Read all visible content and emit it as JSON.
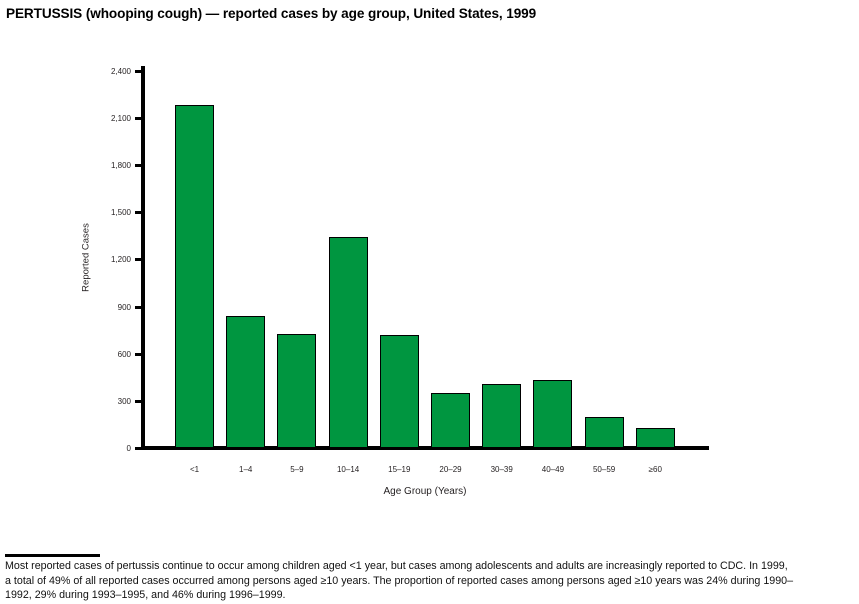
{
  "title": "PERTUSSIS (whooping cough) — reported cases by age group, United States, 1999",
  "chart_data": {
    "type": "bar",
    "title": "PERTUSSIS (whooping cough) — reported cases by age group, United States, 1999",
    "categories": [
      "<1",
      "1–4",
      "5–9",
      "10–14",
      "15–19",
      "20–29",
      "30–39",
      "40–49",
      "50–59",
      "≥60"
    ],
    "values": [
      2185,
      840,
      725,
      1345,
      720,
      350,
      410,
      435,
      195,
      125
    ],
    "xlabel": "Age Group (Years)",
    "ylabel": "Reported Cases",
    "ylim": [
      0,
      2400
    ],
    "ytick_interval": 300,
    "ytick_labels": [
      "0",
      "300",
      "600",
      "900",
      "1,200",
      "1,500",
      "1,800",
      "2,100",
      "2,400"
    ],
    "grid": false,
    "legend": "none",
    "bar_color": "#009640",
    "bar_border_color": "#000000"
  },
  "footer": {
    "lines": [
      "Most reported cases of pertussis continue to occur among children aged <1 year, but cases among adolescents and adults are increasingly reported to CDC. In 1999,",
      "a total of 49% of all reported cases occurred among persons aged ≥10 years. The proportion of reported cases among persons aged ≥10 years was 24% during 1990–",
      "1992, 29% during 1993–1995, and 46% during 1996–1999."
    ]
  }
}
